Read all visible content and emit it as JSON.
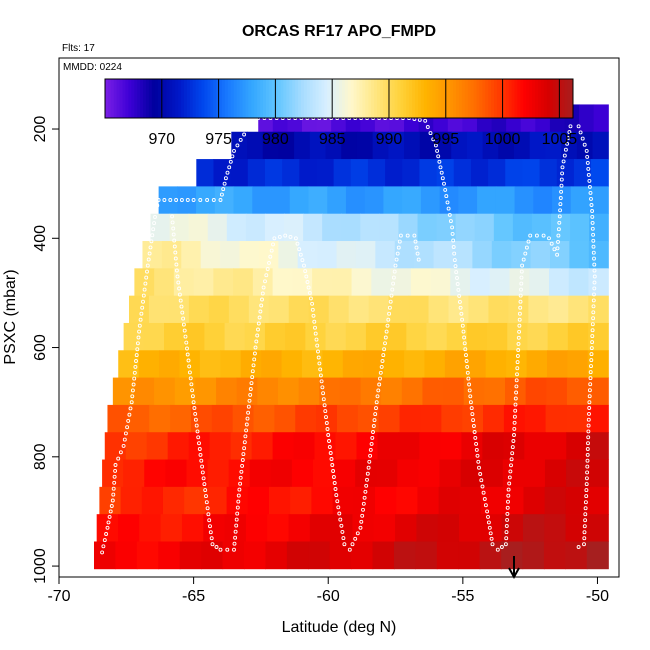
{
  "chart_data": {
    "type": "heatmap",
    "title": "ORCAS RF17 APO_FMPD",
    "annotations": {
      "flights": "Flts: 17",
      "date": "MMDD: 0224"
    },
    "xlabel": "Latitude (deg N)",
    "ylabel": "PSXC (mbar)",
    "xlim": [
      -70,
      -49.2
    ],
    "ylim": [
      1020,
      70
    ],
    "x_ticks": [
      -70,
      -65,
      -60,
      -55,
      -50
    ],
    "y_ticks": [
      200,
      400,
      600,
      800,
      1000
    ],
    "colorbar": {
      "range": [
        965,
        1006.2
      ],
      "ticks": [
        970,
        975,
        980,
        985,
        990,
        995,
        1000,
        1005
      ],
      "colors": [
        "#7b1fe6",
        "#3d00d6",
        "#00009e",
        "#0018c8",
        "#0048ee",
        "#1a7bff",
        "#35a8ff",
        "#62c6ff",
        "#a6dcff",
        "#d8efff",
        "#fff8cc",
        "#ffe680",
        "#ffd23a",
        "#ffb400",
        "#ff9400",
        "#ff6e00",
        "#ff3c00",
        "#ff0000",
        "#d60000",
        "#a61f1f"
      ]
    },
    "bands": [
      {
        "pressure": 180,
        "x_start": -62.6,
        "v_start": 966,
        "v_end": 968
      },
      {
        "pressure": 230,
        "x_start": -63.6,
        "v_start": 970,
        "v_end": 971
      },
      {
        "pressure": 280,
        "x_start": -64.9,
        "v_start": 972,
        "v_end": 973
      },
      {
        "pressure": 330,
        "x_start": -66.3,
        "v_start": 978,
        "v_end": 977
      },
      {
        "pressure": 380,
        "x_start": -66.6,
        "v_start": 986,
        "v_end": 979
      },
      {
        "pressure": 430,
        "x_start": -66.9,
        "v_start": 988,
        "v_end": 980
      },
      {
        "pressure": 480,
        "x_start": -67.2,
        "v_start": 989,
        "v_end": 984
      },
      {
        "pressure": 530,
        "x_start": -67.4,
        "v_start": 990,
        "v_end": 989
      },
      {
        "pressure": 580,
        "x_start": -67.6,
        "v_start": 991,
        "v_end": 991
      },
      {
        "pressure": 630,
        "x_start": -67.8,
        "v_start": 993,
        "v_end": 994
      },
      {
        "pressure": 680,
        "x_start": -68.0,
        "v_start": 995,
        "v_end": 999
      },
      {
        "pressure": 730,
        "x_start": -68.2,
        "v_start": 998,
        "v_end": 1001
      },
      {
        "pressure": 780,
        "x_start": -68.3,
        "v_start": 1000,
        "v_end": 1004
      },
      {
        "pressure": 830,
        "x_start": -68.4,
        "v_start": 1001,
        "v_end": 1004
      },
      {
        "pressure": 880,
        "x_start": -68.5,
        "v_start": 1000,
        "v_end": 1004
      },
      {
        "pressure": 930,
        "x_start": -68.6,
        "v_start": 1001,
        "v_end": 1005
      },
      {
        "pressure": 980,
        "x_start": -68.7,
        "v_start": 1002,
        "v_end": 1006
      }
    ],
    "band_x_end": -49.6,
    "flight_track": [
      [
        -68.4,
        975
      ],
      [
        -68.2,
        930
      ],
      [
        -68.0,
        880
      ],
      [
        -67.9,
        815
      ],
      [
        -67.6,
        780
      ],
      [
        -67.3,
        700
      ],
      [
        -67.0,
        560
      ],
      [
        -66.7,
        450
      ],
      [
        -66.4,
        350
      ],
      [
        -66.3,
        330
      ],
      [
        -65.0,
        330
      ],
      [
        -64.0,
        330
      ],
      [
        -63.8,
        290
      ],
      [
        -63.5,
        240
      ],
      [
        -63.0,
        200
      ],
      [
        -62.6,
        180
      ],
      [
        -61.0,
        180
      ],
      [
        -59.0,
        180
      ],
      [
        -57.0,
        180
      ],
      [
        -56.4,
        185
      ],
      [
        -56.0,
        230
      ],
      [
        -55.7,
        300
      ],
      [
        -55.4,
        380
      ],
      [
        -55.3,
        440
      ],
      [
        -55.0,
        560
      ],
      [
        -54.7,
        700
      ],
      [
        -54.4,
        820
      ],
      [
        -54.1,
        900
      ],
      [
        -53.9,
        960
      ],
      [
        -53.7,
        970
      ],
      [
        -53.4,
        960
      ],
      [
        -53.3,
        860
      ],
      [
        -53.1,
        760
      ],
      [
        -53.0,
        660
      ],
      [
        -52.9,
        560
      ],
      [
        -52.8,
        450
      ],
      [
        -52.5,
        395
      ],
      [
        -52.0,
        395
      ],
      [
        -51.8,
        400
      ],
      [
        -51.5,
        430
      ],
      [
        -51.4,
        360
      ],
      [
        -51.3,
        270
      ],
      [
        -51.0,
        195
      ],
      [
        -50.7,
        195
      ],
      [
        -50.4,
        240
      ],
      [
        -50.2,
        350
      ],
      [
        -50.1,
        470
      ],
      [
        -50.2,
        590
      ],
      [
        -50.3,
        700
      ],
      [
        -50.4,
        850
      ],
      [
        -50.5,
        960
      ],
      [
        -50.9,
        970
      ]
    ],
    "flight_track_2": [
      [
        -65.8,
        360
      ],
      [
        -65.6,
        470
      ],
      [
        -65.3,
        580
      ],
      [
        -65.0,
        700
      ],
      [
        -64.6,
        850
      ],
      [
        -64.3,
        960
      ],
      [
        -64.0,
        970
      ],
      [
        -63.5,
        970
      ],
      [
        -63.3,
        860
      ],
      [
        -63.0,
        730
      ],
      [
        -62.7,
        600
      ],
      [
        -62.4,
        490
      ],
      [
        -62.0,
        400
      ],
      [
        -61.6,
        395
      ],
      [
        -61.2,
        400
      ],
      [
        -60.9,
        450
      ],
      [
        -60.6,
        520
      ],
      [
        -60.3,
        640
      ],
      [
        -60.0,
        760
      ],
      [
        -59.7,
        870
      ],
      [
        -59.4,
        960
      ],
      [
        -59.2,
        970
      ],
      [
        -58.8,
        930
      ],
      [
        -58.5,
        820
      ],
      [
        -58.2,
        700
      ],
      [
        -57.8,
        560
      ],
      [
        -57.5,
        450
      ],
      [
        -57.3,
        395
      ],
      [
        -56.8,
        395
      ],
      [
        -56.6,
        450
      ]
    ],
    "arrow_x": -53.1
  }
}
